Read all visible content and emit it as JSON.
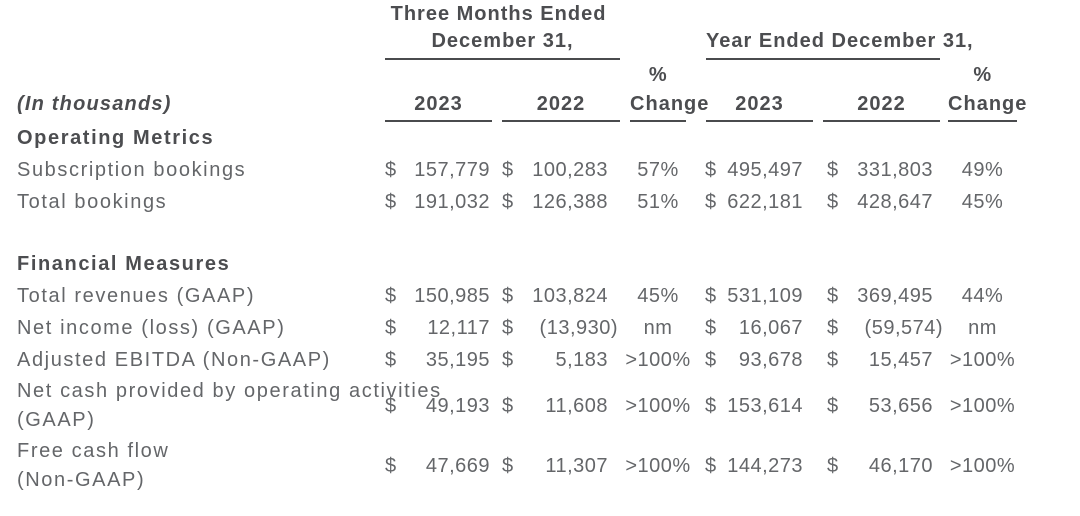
{
  "table": {
    "currency": "$",
    "units_note": "(In thousands)",
    "header": {
      "period1_line1": "Three Months Ended",
      "period1_line2": "December 31,",
      "period2": "Year Ended December 31,",
      "pct_symbol": "%",
      "pct_word": "Change",
      "years": {
        "tm_2023": "2023",
        "tm_2022": "2022",
        "fy_2023": "2023",
        "fy_2022": "2022"
      }
    },
    "sections": [
      {
        "title": "Operating Metrics",
        "rows": [
          {
            "label": "Subscription bookings",
            "tm_2023": "157,779",
            "tm_2022": "100,283",
            "tm_change": "57%",
            "fy_2023": "495,497",
            "fy_2022": "331,803",
            "fy_change": "49%"
          },
          {
            "label": "Total bookings",
            "tm_2023": "191,032",
            "tm_2022": "126,388",
            "tm_change": "51%",
            "fy_2023": "622,181",
            "fy_2022": "428,647",
            "fy_change": "45%"
          }
        ]
      },
      {
        "title": "Financial Measures",
        "rows": [
          {
            "label": "Total revenues (GAAP)",
            "tm_2023": "150,985",
            "tm_2022": "103,824",
            "tm_change": "45%",
            "fy_2023": "531,109",
            "fy_2022": "369,495",
            "fy_change": "44%"
          },
          {
            "label": "Net income (loss) (GAAP)",
            "tm_2023": "12,117",
            "tm_2022": "(13,930)",
            "tm_change": "nm",
            "fy_2023": "16,067",
            "fy_2022": "(59,574)",
            "fy_change": "nm"
          },
          {
            "label": "Adjusted EBITDA (Non-GAAP)",
            "tm_2023": "35,195",
            "tm_2022": "5,183",
            "tm_change": ">100%",
            "fy_2023": "93,678",
            "fy_2022": "15,457",
            "fy_change": ">100%"
          },
          {
            "label": "Net cash provided by operating activities",
            "label2": "(GAAP)",
            "tm_2023": "49,193",
            "tm_2022": "11,608",
            "tm_change": ">100%",
            "fy_2023": "153,614",
            "fy_2022": "53,656",
            "fy_change": ">100%"
          },
          {
            "label": "Free cash flow",
            "label2": "(Non-GAAP)",
            "tm_2023": "47,669",
            "tm_2022": "11,307",
            "tm_change": ">100%",
            "fy_2023": "144,273",
            "fy_2022": "46,170",
            "fy_change": ">100%"
          }
        ]
      }
    ],
    "colors": {
      "text": "#646669",
      "bold_text": "#4c4d50",
      "rule": "#4a4b4d",
      "background": "#ffffff"
    }
  }
}
